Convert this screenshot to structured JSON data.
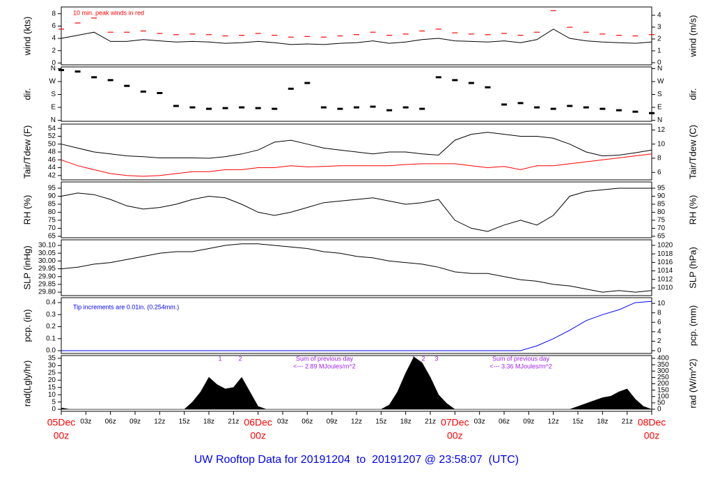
{
  "chart_data": [
    {
      "type": "line",
      "ylabel": "wind (kts)",
      "y2label": "wind (m/s)",
      "xlim": [
        0,
        72
      ],
      "ylim": [
        -0.3,
        9.1
      ],
      "yticks": [
        0,
        2,
        4,
        6,
        8
      ],
      "y2lim": [
        -0.18,
        4.7
      ],
      "y2ticks": [
        0,
        1,
        2,
        3,
        4
      ],
      "annotations": [
        "10 min. peak winds in red"
      ],
      "x": [
        0,
        2,
        4,
        6,
        8,
        10,
        12,
        14,
        16,
        18,
        20,
        22,
        24,
        26,
        28,
        30,
        32,
        34,
        36,
        38,
        40,
        42,
        44,
        46,
        48,
        50,
        52,
        54,
        56,
        58,
        60,
        62,
        64,
        66,
        68,
        70,
        72
      ],
      "series": [
        {
          "style": "line",
          "color": "#000000",
          "values": [
            4,
            4.5,
            5,
            3.5,
            3.5,
            3.8,
            3.6,
            3.4,
            3.5,
            3.4,
            3.2,
            3.3,
            3.5,
            3.3,
            3.0,
            3.1,
            3.0,
            3.2,
            3.3,
            3.6,
            3.2,
            3.4,
            3.8,
            4.0,
            3.6,
            3.5,
            3.4,
            3.6,
            3.3,
            3.8,
            5.5,
            4.0,
            3.6,
            3.4,
            3.3,
            3.2,
            3.4
          ]
        },
        {
          "style": "dash",
          "color": "#ff0000",
          "values": [
            5.5,
            6.5,
            7.3,
            5,
            5,
            5.2,
            4.8,
            4.6,
            4.7,
            4.6,
            4.4,
            4.5,
            4.8,
            4.5,
            4.2,
            4.3,
            4.2,
            4.4,
            4.6,
            5.0,
            4.5,
            4.7,
            5.2,
            5.5,
            4.9,
            4.7,
            4.6,
            4.8,
            4.5,
            5.0,
            8.5,
            5.8,
            5.0,
            4.7,
            4.5,
            4.4,
            4.6
          ]
        }
      ]
    },
    {
      "type": "scatter",
      "ylabel": "dir.",
      "y2label": "dir.",
      "xlim": [
        0,
        72
      ],
      "ylim": [
        -7,
        372
      ],
      "yticks": [
        {
          "value": 0,
          "label": "N"
        },
        {
          "value": 90,
          "label": "E"
        },
        {
          "value": 180,
          "label": "S"
        },
        {
          "value": 270,
          "label": "W"
        },
        {
          "value": 360,
          "label": "N"
        }
      ],
      "y2lim": [
        -7,
        372
      ],
      "y2ticks": [
        {
          "value": 0,
          "label": "N"
        },
        {
          "value": 90,
          "label": "E"
        },
        {
          "value": 180,
          "label": "S"
        },
        {
          "value": 270,
          "label": "W"
        },
        {
          "value": 360,
          "label": "N"
        }
      ],
      "x": [
        0,
        2,
        4,
        6,
        8,
        10,
        12,
        14,
        16,
        18,
        20,
        22,
        24,
        26,
        28,
        30,
        32,
        34,
        36,
        38,
        40,
        42,
        44,
        46,
        48,
        50,
        52,
        54,
        56,
        58,
        60,
        62,
        64,
        66,
        68,
        70,
        72
      ],
      "series": [
        {
          "style": "dot",
          "color": "#000000",
          "values": [
            350,
            340,
            300,
            280,
            240,
            200,
            190,
            100,
            90,
            80,
            85,
            90,
            85,
            80,
            220,
            260,
            90,
            80,
            90,
            95,
            70,
            90,
            80,
            300,
            280,
            260,
            230,
            110,
            120,
            90,
            80,
            100,
            90,
            80,
            70,
            60,
            50
          ]
        }
      ]
    },
    {
      "type": "line",
      "ylabel": "Tair/Tdew (F)",
      "y2label": "Tair/Tdew (C)",
      "xlim": [
        0,
        72
      ],
      "ylim": [
        40.9,
        55.1
      ],
      "yticks": [
        42,
        44,
        46,
        48,
        50,
        52,
        54
      ],
      "y2lim": [
        4.94,
        12.83
      ],
      "y2ticks": [
        6,
        8,
        10,
        12
      ],
      "x": [
        0,
        2,
        4,
        6,
        8,
        10,
        12,
        14,
        16,
        18,
        20,
        22,
        24,
        26,
        28,
        30,
        32,
        34,
        36,
        38,
        40,
        42,
        44,
        46,
        48,
        50,
        52,
        54,
        56,
        58,
        60,
        62,
        64,
        66,
        68,
        70,
        72
      ],
      "series": [
        {
          "style": "line",
          "color": "#000000",
          "values": [
            50,
            49,
            48,
            47.5,
            47,
            46.8,
            46.5,
            46.5,
            46.5,
            46.4,
            46.8,
            47.5,
            48.5,
            50.5,
            51,
            50,
            49,
            48.5,
            48,
            47.5,
            48,
            48,
            47.5,
            47.2,
            51,
            52.5,
            53,
            52.5,
            52,
            52,
            51.5,
            50,
            48,
            47,
            47.2,
            47.8,
            48.5
          ]
        },
        {
          "style": "line",
          "color": "#ff0000",
          "values": [
            46,
            44.5,
            43.5,
            42.5,
            42,
            41.8,
            42,
            42.5,
            43,
            43,
            43.5,
            43.5,
            44,
            44,
            44.5,
            44.2,
            44.3,
            44.5,
            44.5,
            44.5,
            44.5,
            44.8,
            45,
            45,
            45,
            44.5,
            44,
            44.3,
            43.5,
            44.5,
            44.5,
            45,
            45.5,
            46,
            46.5,
            47,
            47.5
          ]
        }
      ]
    },
    {
      "type": "line",
      "ylabel": "RH (%)",
      "y2label": "RH (%)",
      "xlim": [
        0,
        72
      ],
      "ylim": [
        64.1,
        98.9
      ],
      "yticks": [
        65,
        70,
        75,
        80,
        85,
        90,
        95
      ],
      "y2lim": [
        64.1,
        98.9
      ],
      "y2ticks": [
        65,
        70,
        75,
        80,
        85,
        90,
        95
      ],
      "x": [
        0,
        2,
        4,
        6,
        8,
        10,
        12,
        14,
        16,
        18,
        20,
        22,
        24,
        26,
        28,
        30,
        32,
        34,
        36,
        38,
        40,
        42,
        44,
        46,
        48,
        50,
        52,
        54,
        56,
        58,
        60,
        62,
        64,
        66,
        68,
        70,
        72
      ],
      "series": [
        {
          "style": "line",
          "color": "#000000",
          "values": [
            90,
            92,
            91,
            88,
            84,
            82,
            83,
            85,
            88,
            90,
            89,
            85,
            80,
            78,
            80,
            83,
            86,
            87,
            88,
            89,
            87,
            85,
            86,
            88,
            75,
            70,
            68,
            72,
            75,
            72,
            78,
            90,
            93,
            94,
            95,
            95,
            95
          ]
        }
      ]
    },
    {
      "type": "line",
      "ylabel": "SLP (inHg)",
      "y2label": "SLP (hPa)",
      "xlim": [
        0,
        72
      ],
      "ylim": [
        29.778,
        30.136
      ],
      "yticks": [
        {
          "value": 29.8,
          "label": "29.80"
        },
        29.85,
        {
          "value": 29.9,
          "label": "29.90"
        },
        29.95,
        {
          "value": 30,
          "label": "30.00"
        },
        30.05,
        {
          "value": 30.1,
          "label": "30.10"
        }
      ],
      "y2lim": [
        1008.2,
        1021.3
      ],
      "y2ticks": [
        1010,
        1012,
        1014,
        1016,
        1018,
        1020
      ],
      "x": [
        0,
        2,
        4,
        6,
        8,
        10,
        12,
        14,
        16,
        18,
        20,
        22,
        24,
        26,
        28,
        30,
        32,
        34,
        36,
        38,
        40,
        42,
        44,
        46,
        48,
        50,
        52,
        54,
        56,
        58,
        60,
        62,
        64,
        66,
        68,
        70,
        72
      ],
      "series": [
        {
          "style": "line",
          "color": "#000000",
          "values": [
            29.95,
            29.96,
            29.98,
            29.99,
            30.01,
            30.03,
            30.05,
            30.06,
            30.06,
            30.08,
            30.1,
            30.11,
            30.11,
            30.1,
            30.09,
            30.08,
            30.06,
            30.05,
            30.03,
            30.02,
            30.0,
            29.99,
            29.98,
            29.96,
            29.93,
            29.92,
            29.92,
            29.9,
            29.88,
            29.87,
            29.85,
            29.84,
            29.82,
            29.8,
            29.81,
            29.8,
            29.81
          ]
        }
      ]
    },
    {
      "type": "line",
      "ylabel": "pcp. (in)",
      "y2label": "pcp. (mm)",
      "xlim": [
        0,
        72
      ],
      "ylim": [
        -0.023,
        0.441
      ],
      "yticks": [
        {
          "value": 0,
          "label": "0.0"
        },
        0.1,
        0.2,
        0.3,
        0.4
      ],
      "y2lim": [
        -0.59,
        11.2
      ],
      "y2ticks": [
        0,
        2,
        4,
        6,
        8,
        10
      ],
      "annotations": [
        "Tip increments are 0.01in. (0.254mm.)"
      ],
      "x": [
        0,
        2,
        4,
        6,
        8,
        10,
        12,
        14,
        16,
        18,
        20,
        22,
        24,
        26,
        28,
        30,
        32,
        34,
        36,
        38,
        40,
        42,
        44,
        46,
        48,
        50,
        52,
        54,
        56,
        58,
        60,
        62,
        64,
        66,
        68,
        70,
        72
      ],
      "series": [
        {
          "style": "line",
          "color": "#0000ff",
          "values": [
            0,
            0,
            0,
            0,
            0,
            0,
            0,
            0,
            0,
            0,
            0,
            0,
            0,
            0,
            0,
            0,
            0,
            0,
            0,
            0,
            0,
            0,
            0,
            0,
            0,
            0,
            0,
            0,
            0,
            0.04,
            0.1,
            0.17,
            0.25,
            0.3,
            0.34,
            0.4,
            0.41
          ]
        }
      ]
    },
    {
      "type": "area",
      "ylabel": "rad(Lgly/hr)",
      "y2label": "rad (W/m^2)",
      "xlim": [
        0,
        72
      ],
      "ylim": [
        -1.4,
        36.9
      ],
      "yticks": [
        0,
        5,
        10,
        15,
        20,
        25,
        30,
        35
      ],
      "y2lim": [
        -16.4,
        421.9
      ],
      "y2ticks": [
        0,
        50,
        100,
        150,
        200,
        250,
        300,
        350,
        400
      ],
      "annotations": [
        "1",
        "2",
        "Sum of previous day",
        "<--- 2.89 MJoules/m^2",
        "1",
        "2",
        "3",
        "Sum of previous day",
        "<--- 3.36 MJoules/m^2"
      ],
      "x": [
        0,
        1,
        2,
        3,
        4,
        5,
        6,
        7,
        8,
        9,
        10,
        11,
        12,
        13,
        14,
        15,
        16,
        17,
        18,
        19,
        20,
        21,
        22,
        23,
        24,
        25,
        26,
        27,
        28,
        29,
        30,
        31,
        32,
        33,
        34,
        35,
        36,
        37,
        38,
        39,
        40,
        41,
        42,
        43,
        44,
        45,
        46,
        47,
        48,
        49,
        50,
        51,
        52,
        53,
        54,
        55,
        56,
        57,
        58,
        59,
        60,
        61,
        62,
        63,
        64,
        65,
        66,
        67,
        68,
        69,
        70,
        71,
        72
      ],
      "series": [
        {
          "style": "area",
          "color": "#000000",
          "values": [
            1,
            0,
            0,
            0,
            0,
            0,
            0,
            0,
            0,
            0,
            0,
            0,
            0,
            0,
            0,
            0,
            5,
            12,
            22,
            17,
            14,
            15,
            22,
            12,
            2,
            0,
            0,
            0,
            0,
            0,
            0,
            0,
            0,
            0,
            0,
            0,
            0,
            0,
            0,
            0,
            3,
            12,
            25,
            36,
            32,
            22,
            10,
            4,
            0,
            0,
            0,
            0,
            0,
            0,
            0,
            0,
            0,
            0,
            0,
            0,
            0,
            0,
            0,
            2,
            4,
            6,
            8,
            9,
            12,
            14,
            7,
            2,
            0
          ]
        }
      ],
      "xticks": [
        {
          "value": 0,
          "label": "00z"
        },
        {
          "value": 3,
          "label": "03z"
        },
        {
          "value": 6,
          "label": "06z"
        },
        {
          "value": 9,
          "label": "09z"
        },
        {
          "value": 12,
          "label": "12z"
        },
        {
          "value": 15,
          "label": "15z"
        },
        {
          "value": 18,
          "label": "18z"
        },
        {
          "value": 21,
          "label": "21z"
        },
        {
          "value": 24,
          "label": "00z"
        },
        {
          "value": 27,
          "label": "03z"
        },
        {
          "value": 30,
          "label": "06z"
        },
        {
          "value": 33,
          "label": "09z"
        },
        {
          "value": 36,
          "label": "12z"
        },
        {
          "value": 39,
          "label": "15z"
        },
        {
          "value": 42,
          "label": "18z"
        },
        {
          "value": 45,
          "label": "21z"
        },
        {
          "value": 48,
          "label": "00z"
        },
        {
          "value": 51,
          "label": "03z"
        },
        {
          "value": 54,
          "label": "06z"
        },
        {
          "value": 57,
          "label": "09z"
        },
        {
          "value": 60,
          "label": "12z"
        },
        {
          "value": 63,
          "label": "15z"
        },
        {
          "value": 66,
          "label": "18z"
        },
        {
          "value": 69,
          "label": "21z"
        },
        {
          "value": 72,
          "label": "00z"
        }
      ],
      "x_dates": [
        {
          "value": 0,
          "label": "05Dec"
        },
        {
          "value": 24,
          "label": "06Dec"
        },
        {
          "value": 48,
          "label": "07Dec"
        },
        {
          "value": 72,
          "label": "08Dec"
        }
      ],
      "footer": "UW Rooftop Data for 20191204  to  20191207 @ 23:58:07  (UTC)"
    }
  ]
}
